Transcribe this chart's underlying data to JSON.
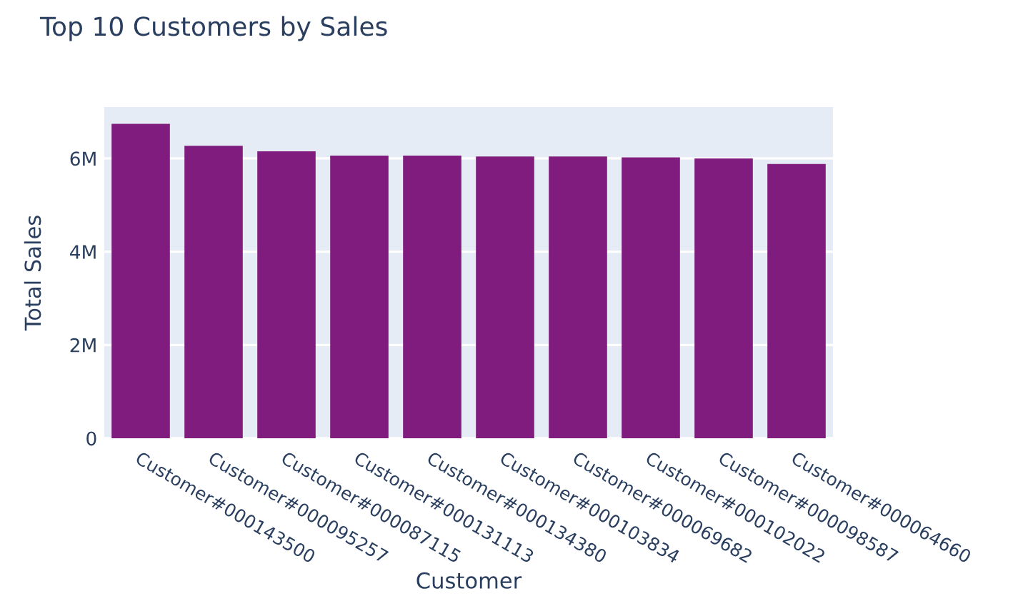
{
  "chart_data": {
    "type": "bar",
    "title": "Top 10 Customers by Sales",
    "xlabel": "Customer",
    "ylabel": "Total Sales",
    "categories": [
      "Customer#000143500",
      "Customer#000095257",
      "Customer#000087115",
      "Customer#000131113",
      "Customer#000134380",
      "Customer#000103834",
      "Customer#000069682",
      "Customer#000102022",
      "Customer#000098587",
      "Customer#000064660"
    ],
    "values": [
      6740000,
      6270000,
      6150000,
      6060000,
      6060000,
      6040000,
      6040000,
      6020000,
      6000000,
      5880000
    ],
    "color": "#7f1c7d",
    "ylim": [
      0,
      7100000
    ],
    "yticks": [
      0,
      {
        "value": 2000000,
        "label": "2M"
      },
      {
        "value": 4000000,
        "label": "4M"
      },
      {
        "value": 6000000,
        "label": "6M"
      }
    ],
    "grid": "y",
    "legend": false
  }
}
